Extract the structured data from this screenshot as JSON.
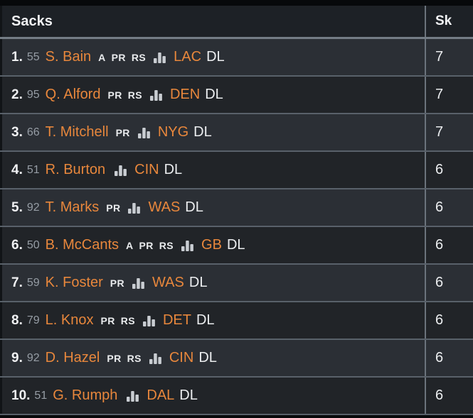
{
  "table": {
    "title": "Sacks",
    "stat_column": "Sk",
    "stats_icon": "bar-chart-icon",
    "rows": [
      {
        "rank": "1.",
        "jersey": "55",
        "name": "S. Bain",
        "badges": [
          "A",
          "PR",
          "RS"
        ],
        "team": "LAC",
        "position": "DL",
        "value": "7"
      },
      {
        "rank": "2.",
        "jersey": "95",
        "name": "Q. Alford",
        "badges": [
          "PR",
          "RS"
        ],
        "team": "DEN",
        "position": "DL",
        "value": "7"
      },
      {
        "rank": "3.",
        "jersey": "66",
        "name": "T. Mitchell",
        "badges": [
          "PR"
        ],
        "team": "NYG",
        "position": "DL",
        "value": "7"
      },
      {
        "rank": "4.",
        "jersey": "51",
        "name": "R. Burton",
        "badges": [],
        "team": "CIN",
        "position": "DL",
        "value": "6"
      },
      {
        "rank": "5.",
        "jersey": "92",
        "name": "T. Marks",
        "badges": [
          "PR"
        ],
        "team": "WAS",
        "position": "DL",
        "value": "6"
      },
      {
        "rank": "6.",
        "jersey": "50",
        "name": "B. McCants",
        "badges": [
          "A",
          "PR",
          "RS"
        ],
        "team": "GB",
        "position": "DL",
        "value": "6"
      },
      {
        "rank": "7.",
        "jersey": "59",
        "name": "K. Foster",
        "badges": [
          "PR"
        ],
        "team": "WAS",
        "position": "DL",
        "value": "6"
      },
      {
        "rank": "8.",
        "jersey": "79",
        "name": "L. Knox",
        "badges": [
          "PR",
          "RS"
        ],
        "team": "DET",
        "position": "DL",
        "value": "6"
      },
      {
        "rank": "9.",
        "jersey": "92",
        "name": "D. Hazel",
        "badges": [
          "PR",
          "RS"
        ],
        "team": "CIN",
        "position": "DL",
        "value": "6"
      },
      {
        "rank": "10.",
        "jersey": "51",
        "name": "G. Rumph",
        "badges": [],
        "team": "DAL",
        "position": "DL",
        "value": "6"
      }
    ]
  },
  "colors": {
    "accent_orange": "#e8873c",
    "header_bg": "#1d2126",
    "row_odd": "#2b2f35",
    "row_even": "#212428",
    "row_divider": "#59616a",
    "column_divider": "#6b737c",
    "header_divider": "#747d86",
    "text_primary": "#eceef0",
    "text_secondary": "#969da5",
    "icon_bars": "#c9cdd2"
  }
}
